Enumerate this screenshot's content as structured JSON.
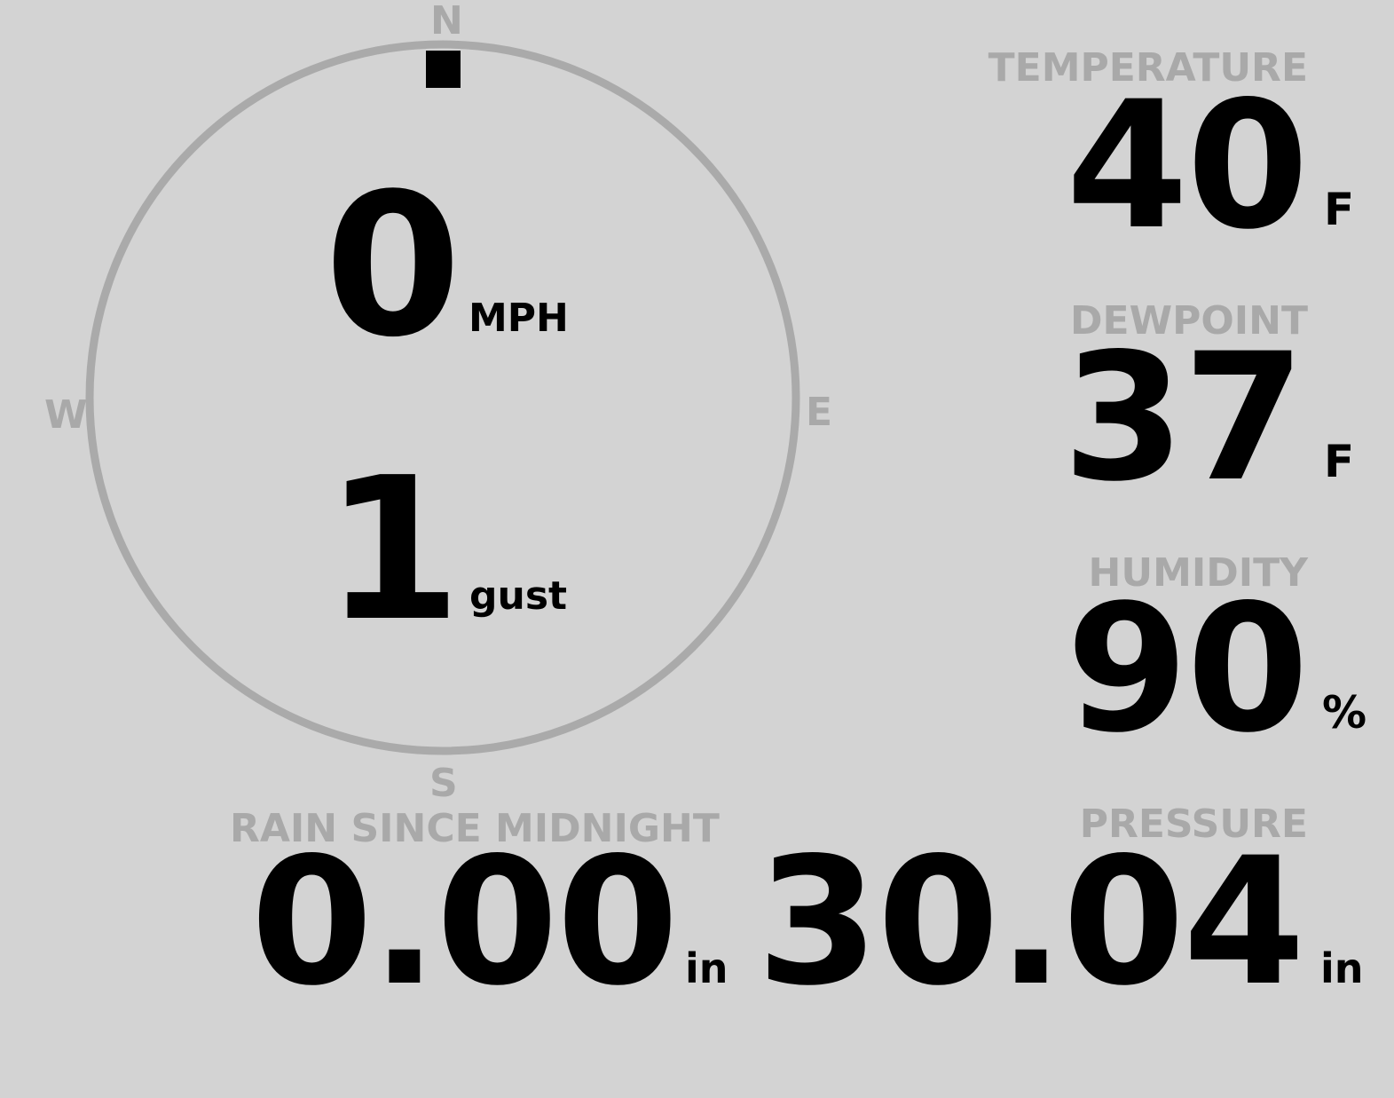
{
  "wind": {
    "cardinals": {
      "n": "N",
      "e": "E",
      "s": "S",
      "w": "W"
    },
    "direction_deg": 0,
    "speed": "0",
    "speed_unit": "MPH",
    "gust": "1",
    "gust_unit": "gust"
  },
  "temperature": {
    "label": "TEMPERATURE",
    "value": "40",
    "unit": "F"
  },
  "dewpoint": {
    "label": "DEWPOINT",
    "value": "37",
    "unit": "F"
  },
  "humidity": {
    "label": "HUMIDITY",
    "value": "90",
    "unit": "%"
  },
  "rain": {
    "label": "RAIN SINCE MIDNIGHT",
    "value": "0.00",
    "unit": "in"
  },
  "pressure": {
    "label": "PRESSURE",
    "value": "30.04",
    "unit": "in"
  },
  "colors": {
    "background": "#d3d3d3",
    "label": "#a9a9a9",
    "value": "#000000",
    "ring": "#aaaaaa"
  }
}
